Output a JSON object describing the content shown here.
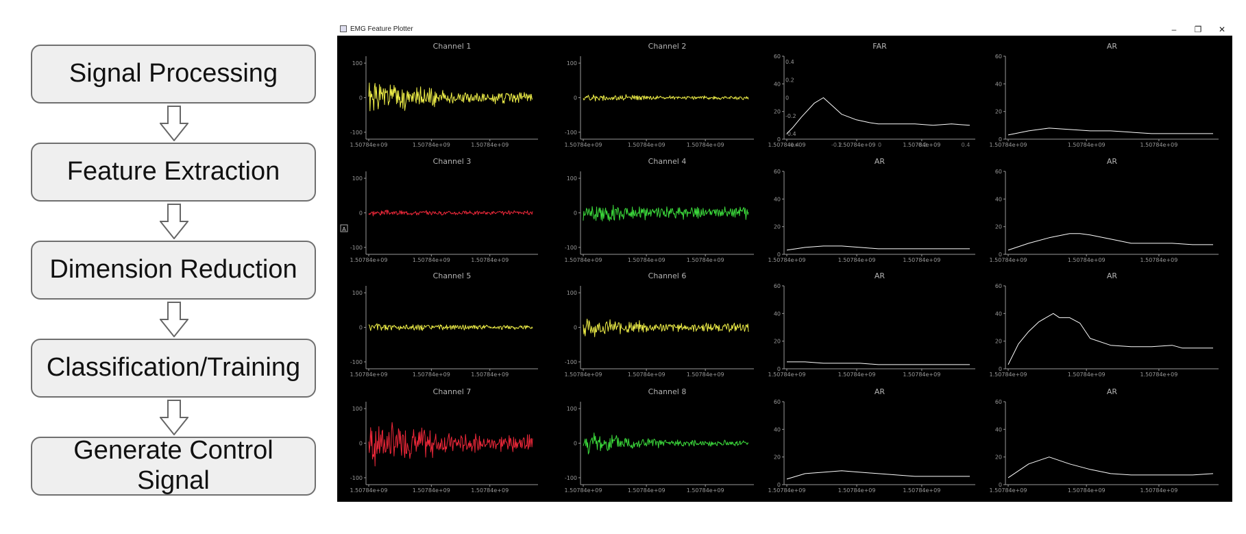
{
  "flowchart": {
    "steps": [
      "Signal Processing",
      "Feature Extraction",
      "Dimension Reduction",
      "Classification/Training",
      "Generate Control\nSignal"
    ]
  },
  "window": {
    "title": "EMG Feature Plotter",
    "app_icon": "window-app-icon",
    "controls": {
      "minimize": "–",
      "maximize": "❐",
      "close": "✕"
    }
  },
  "colors": {
    "yellow": "#f0f048",
    "red": "#f0283a",
    "green": "#3cdc3c",
    "white": "#ffffff",
    "axis": "#9a9a9a",
    "title": "#b4b4b4"
  },
  "overlay_badge": "A",
  "chart_data": [
    {
      "type": "line",
      "title": "Channel 1",
      "color": "yellow",
      "ylim": [
        -120,
        120
      ],
      "yticks": [
        "100",
        "0",
        "-100"
      ],
      "xticks": [
        "1.50784e+09",
        "1.50784e+09",
        "1.50784e+09"
      ],
      "amp_start": 55,
      "amp_end": 20,
      "seed": 1
    },
    {
      "type": "line",
      "title": "Channel 2",
      "color": "yellow",
      "ylim": [
        -120,
        120
      ],
      "yticks": [
        "100",
        "0",
        "-100"
      ],
      "xticks": [
        "1.50784e+09",
        "1.50784e+09",
        "1.50784e+09"
      ],
      "amp_start": 12,
      "amp_end": 6,
      "seed": 2
    },
    {
      "type": "line",
      "title": "FAR",
      "color": "white",
      "ylim": [
        0,
        60
      ],
      "yticks": [
        "60",
        "40",
        "20",
        "0"
      ],
      "xticks": [
        "1.50784e+09",
        "1.50784e+09",
        "1.50784e+09"
      ],
      "overlay_yticks": [
        "0.4",
        "0.2",
        "0",
        "-0.2",
        "-0.4"
      ],
      "overlay_xticks": [
        "-0.4",
        "-0.2",
        "0",
        "0.2",
        "0.4"
      ],
      "x": [
        0,
        0.03,
        0.08,
        0.15,
        0.2,
        0.25,
        0.3,
        0.38,
        0.45,
        0.5,
        0.6,
        0.7,
        0.8,
        0.9,
        1
      ],
      "values": [
        4,
        8,
        16,
        26,
        30,
        24,
        18,
        14,
        12,
        11,
        11,
        11,
        10,
        11,
        10
      ]
    },
    {
      "type": "line",
      "title": "AR",
      "color": "white",
      "ylim": [
        0,
        60
      ],
      "yticks": [
        "60",
        "40",
        "20",
        "0"
      ],
      "xticks": [
        "1.50784e+09",
        "1.50784e+09",
        "1.50784e+09"
      ],
      "x": [
        0,
        0.1,
        0.2,
        0.3,
        0.4,
        0.5,
        0.6,
        0.7,
        0.8,
        0.9,
        1
      ],
      "values": [
        3,
        6,
        8,
        7,
        6,
        6,
        5,
        4,
        4,
        4,
        4
      ]
    },
    {
      "type": "line",
      "title": "Channel 3",
      "color": "red",
      "ylim": [
        -120,
        120
      ],
      "yticks": [
        "100",
        "0",
        "-100"
      ],
      "xticks": [
        "1.50784e+09",
        "1.50784e+09",
        "1.50784e+09"
      ],
      "amp_start": 10,
      "amp_end": 7,
      "seed": 3
    },
    {
      "type": "line",
      "title": "Channel 4",
      "color": "green",
      "ylim": [
        -120,
        120
      ],
      "yticks": [
        "100",
        "0",
        "-100"
      ],
      "xticks": [
        "1.50784e+09",
        "1.50784e+09",
        "1.50784e+09"
      ],
      "amp_start": 30,
      "amp_end": 20,
      "seed": 4
    },
    {
      "type": "line",
      "title": "AR",
      "color": "white",
      "ylim": [
        0,
        60
      ],
      "yticks": [
        "60",
        "40",
        "20",
        "0"
      ],
      "xticks": [
        "1.50784e+09",
        "1.50784e+09",
        "1.50784e+09"
      ],
      "x": [
        0,
        0.1,
        0.2,
        0.3,
        0.4,
        0.5,
        0.6,
        0.7,
        0.8,
        0.9,
        1
      ],
      "values": [
        3,
        5,
        6,
        6,
        5,
        4,
        4,
        4,
        4,
        4,
        4
      ]
    },
    {
      "type": "line",
      "title": "AR",
      "color": "white",
      "ylim": [
        0,
        60
      ],
      "yticks": [
        "60",
        "40",
        "20",
        "0"
      ],
      "xticks": [
        "1.50784e+09",
        "1.50784e+09",
        "1.50784e+09"
      ],
      "x": [
        0,
        0.1,
        0.2,
        0.3,
        0.35,
        0.4,
        0.5,
        0.6,
        0.7,
        0.8,
        0.9,
        1
      ],
      "values": [
        3,
        8,
        12,
        15,
        15,
        14,
        11,
        8,
        8,
        8,
        7,
        7
      ]
    },
    {
      "type": "line",
      "title": "Channel 5",
      "color": "yellow",
      "ylim": [
        -120,
        120
      ],
      "yticks": [
        "100",
        "0",
        "-100"
      ],
      "xticks": [
        "1.50784e+09",
        "1.50784e+09",
        "1.50784e+09"
      ],
      "amp_start": 14,
      "amp_end": 8,
      "seed": 5
    },
    {
      "type": "line",
      "title": "Channel 6",
      "color": "yellow",
      "ylim": [
        -120,
        120
      ],
      "yticks": [
        "100",
        "0",
        "-100"
      ],
      "xticks": [
        "1.50784e+09",
        "1.50784e+09",
        "1.50784e+09"
      ],
      "amp_start": 30,
      "amp_end": 15,
      "seed": 6
    },
    {
      "type": "line",
      "title": "AR",
      "color": "white",
      "ylim": [
        0,
        60
      ],
      "yticks": [
        "60",
        "40",
        "20",
        "0"
      ],
      "xticks": [
        "1.50784e+09",
        "1.50784e+09",
        "1.50784e+09"
      ],
      "x": [
        0,
        0.1,
        0.2,
        0.3,
        0.4,
        0.5,
        0.6,
        0.7,
        0.8,
        0.9,
        1
      ],
      "values": [
        5,
        5,
        4,
        4,
        4,
        3,
        3,
        3,
        3,
        3,
        3
      ]
    },
    {
      "type": "line",
      "title": "AR",
      "color": "white",
      "ylim": [
        0,
        60
      ],
      "yticks": [
        "60",
        "40",
        "20",
        "0"
      ],
      "xticks": [
        "1.50784e+09",
        "1.50784e+09",
        "1.50784e+09"
      ],
      "x": [
        0,
        0.05,
        0.1,
        0.15,
        0.22,
        0.25,
        0.3,
        0.35,
        0.4,
        0.5,
        0.6,
        0.7,
        0.8,
        0.85,
        0.9,
        1
      ],
      "values": [
        3,
        18,
        27,
        34,
        40,
        37,
        37,
        33,
        22,
        17,
        16,
        16,
        17,
        15,
        15,
        15
      ]
    },
    {
      "type": "line",
      "title": "Channel 7",
      "color": "red",
      "ylim": [
        -120,
        120
      ],
      "yticks": [
        "100",
        "0",
        "-100"
      ],
      "xticks": [
        "1.50784e+09",
        "1.50784e+09",
        "1.50784e+09"
      ],
      "amp_start": 80,
      "amp_end": 30,
      "seed": 7
    },
    {
      "type": "line",
      "title": "Channel 8",
      "color": "green",
      "ylim": [
        -120,
        120
      ],
      "yticks": [
        "100",
        "0",
        "-100"
      ],
      "xticks": [
        "1.50784e+09",
        "1.50784e+09",
        "1.50784e+09"
      ],
      "amp_start": 40,
      "amp_end": 10,
      "seed": 8
    },
    {
      "type": "line",
      "title": "AR",
      "color": "white",
      "ylim": [
        0,
        60
      ],
      "yticks": [
        "60",
        "40",
        "20",
        "0"
      ],
      "xticks": [
        "1.50784e+09",
        "1.50784e+09",
        "1.50784e+09"
      ],
      "x": [
        0,
        0.1,
        0.2,
        0.3,
        0.4,
        0.5,
        0.6,
        0.7,
        0.8,
        0.9,
        1
      ],
      "values": [
        4,
        8,
        9,
        10,
        9,
        8,
        7,
        6,
        6,
        6,
        6
      ]
    },
    {
      "type": "line",
      "title": "AR",
      "color": "white",
      "ylim": [
        0,
        60
      ],
      "yticks": [
        "60",
        "40",
        "20",
        "0"
      ],
      "xticks": [
        "1.50784e+09",
        "1.50784e+09",
        "1.50784e+09"
      ],
      "x": [
        0,
        0.1,
        0.2,
        0.3,
        0.4,
        0.5,
        0.6,
        0.7,
        0.8,
        0.9,
        1
      ],
      "values": [
        5,
        15,
        20,
        15,
        11,
        8,
        7,
        7,
        7,
        7,
        8
      ]
    }
  ]
}
